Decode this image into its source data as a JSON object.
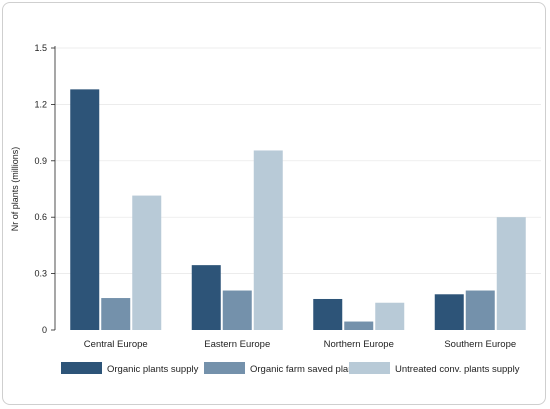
{
  "chart_data": {
    "type": "bar",
    "title": "",
    "xlabel": "",
    "ylabel": "Nr of plants (millions)",
    "ylim": [
      0,
      1.5
    ],
    "yticks": [
      0,
      0.3,
      0.6,
      0.9,
      1.2,
      1.5
    ],
    "ytick_labels": [
      "0",
      "0.3",
      "0.6",
      "0.9",
      "1.2",
      "1.5"
    ],
    "grid": true,
    "legend_position": "bottom",
    "categories": [
      "Central Europe",
      "Eastern Europe",
      "Northern Europe",
      "Southern Europe"
    ],
    "series": [
      {
        "name": "Organic plants supply",
        "color": "#2d5478",
        "values": [
          1.28,
          0.345,
          0.165,
          0.19
        ]
      },
      {
        "name": "Organic farm saved plants",
        "color": "#7491ab",
        "values": [
          0.17,
          0.21,
          0.045,
          0.21
        ]
      },
      {
        "name": "Untreated conv. plants supply",
        "color": "#b8cad7",
        "values": [
          0.715,
          0.955,
          0.145,
          0.6
        ]
      }
    ]
  }
}
